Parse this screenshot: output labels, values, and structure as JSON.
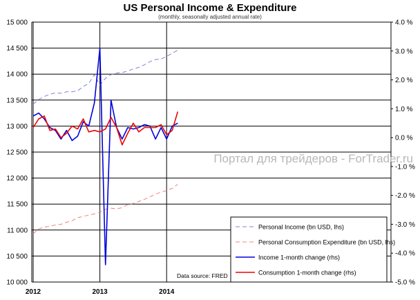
{
  "chart_data": {
    "type": "line",
    "title": "US Personal Income & Expenditure",
    "subtitle": "(monthly, seasonally adjusted annual rate)",
    "x": [
      "2012-01",
      "2012-02",
      "2012-03",
      "2012-04",
      "2012-05",
      "2012-06",
      "2012-07",
      "2012-08",
      "2012-09",
      "2012-10",
      "2012-11",
      "2012-12",
      "2013-01",
      "2013-02",
      "2013-03",
      "2013-04",
      "2013-05",
      "2013-06",
      "2013-07",
      "2013-08",
      "2013-09",
      "2013-10",
      "2013-11",
      "2013-12",
      "2014-01",
      "2014-02",
      "2014-03"
    ],
    "x_ticks": [
      {
        "label": "2012",
        "index": 0
      },
      {
        "label": "2013",
        "index": 12
      },
      {
        "label": "2014",
        "index": 24
      }
    ],
    "y_left": {
      "min": 10000,
      "max": 15000,
      "step": 500,
      "ticks": [
        "10 000",
        "10 500",
        "11 000",
        "11 500",
        "12 000",
        "12 500",
        "13 000",
        "13 500",
        "14 000",
        "14 500",
        "15 000"
      ]
    },
    "y_right": {
      "min": -5.0,
      "max": 4.0,
      "step": 1.0,
      "ticks": [
        "-5.0 %",
        "-4.0 %",
        "-3.0 %",
        "-2.0 %",
        "-1.0 %",
        "0.0 %",
        "1.0 %",
        "2.0 %",
        "3.0 %",
        "4.0 %"
      ]
    },
    "series": [
      {
        "name": "Personal Income (bn USD, lhs)",
        "axis": "left",
        "color": "#7f7fdf",
        "dash": true,
        "values": [
          13420,
          13510,
          13570,
          13610,
          13640,
          13630,
          13660,
          13660,
          13680,
          13760,
          13820,
          13990,
          13790,
          13920,
          13990,
          14020,
          14030,
          14060,
          14100,
          14130,
          14180,
          14240,
          14280,
          14290,
          14340,
          14400,
          14460
        ]
      },
      {
        "name": "Personal Consumption Expenditure (bn USD, lhs)",
        "axis": "left",
        "color": "#f08080",
        "dash": true,
        "values": [
          10930,
          11020,
          11060,
          11070,
          11100,
          11110,
          11150,
          11180,
          11240,
          11260,
          11290,
          11310,
          11340,
          11400,
          11420,
          11410,
          11430,
          11490,
          11510,
          11550,
          11590,
          11640,
          11690,
          11730,
          11760,
          11800,
          11880
        ]
      },
      {
        "name": "Income 1-month change (rhs)",
        "axis": "right",
        "color": "#0000dd",
        "dash": false,
        "values": [
          0.75,
          0.85,
          0.65,
          0.35,
          0.25,
          -0.05,
          0.25,
          -0.1,
          0.05,
          0.55,
          0.4,
          1.2,
          3.1,
          -4.4,
          1.3,
          0.35,
          -0.05,
          0.35,
          0.3,
          0.35,
          0.45,
          0.4,
          -0.05,
          0.35,
          -0.05,
          0.4,
          0.5
        ]
      },
      {
        "name": "Consumption 1-month change (rhs)",
        "axis": "right",
        "color": "#ee0000",
        "dash": false,
        "values": [
          0.35,
          0.65,
          0.75,
          0.25,
          0.3,
          0.0,
          0.15,
          0.4,
          0.3,
          0.65,
          0.2,
          0.25,
          0.2,
          0.3,
          0.7,
          0.35,
          -0.25,
          0.15,
          0.5,
          0.2,
          0.35,
          0.35,
          0.35,
          0.45,
          0.1,
          0.25,
          0.9
        ]
      }
    ],
    "grid": true,
    "legend_position": "bottom-right"
  },
  "annotations": {
    "source": "Data source: FRED",
    "watermark": "Портал для трейдеров - ForTrader.ru"
  }
}
